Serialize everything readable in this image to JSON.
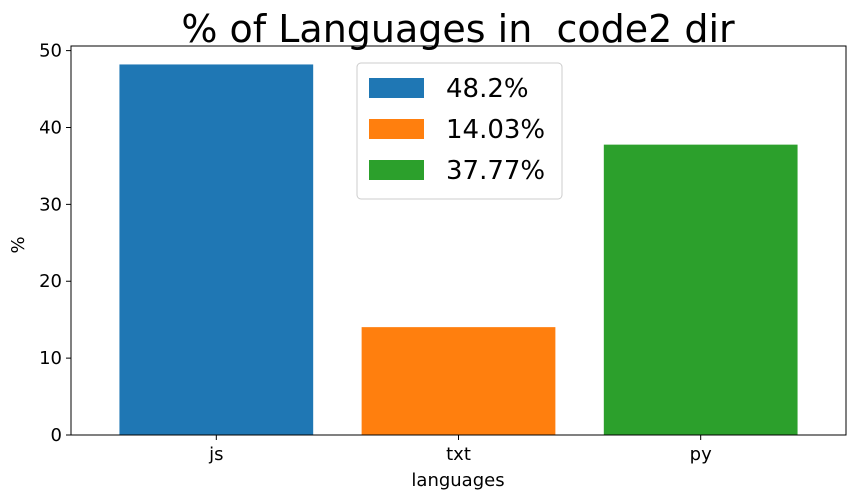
{
  "chart_data": {
    "type": "bar",
    "title": "% of Languages in  code2 dir",
    "xlabel": "languages",
    "ylabel": "%",
    "categories": [
      "js",
      "txt",
      "py"
    ],
    "values": [
      48.2,
      14.03,
      37.77
    ],
    "colors": [
      "#1f77b4",
      "#ff7f0e",
      "#2ca02c"
    ],
    "legend": {
      "placement": "top-center",
      "entries": [
        "48.2%",
        "14.03%",
        "37.77%"
      ]
    },
    "ylim": [
      0,
      50.6
    ],
    "yticks": [
      0,
      10,
      20,
      30,
      40,
      50
    ],
    "grid": false
  }
}
